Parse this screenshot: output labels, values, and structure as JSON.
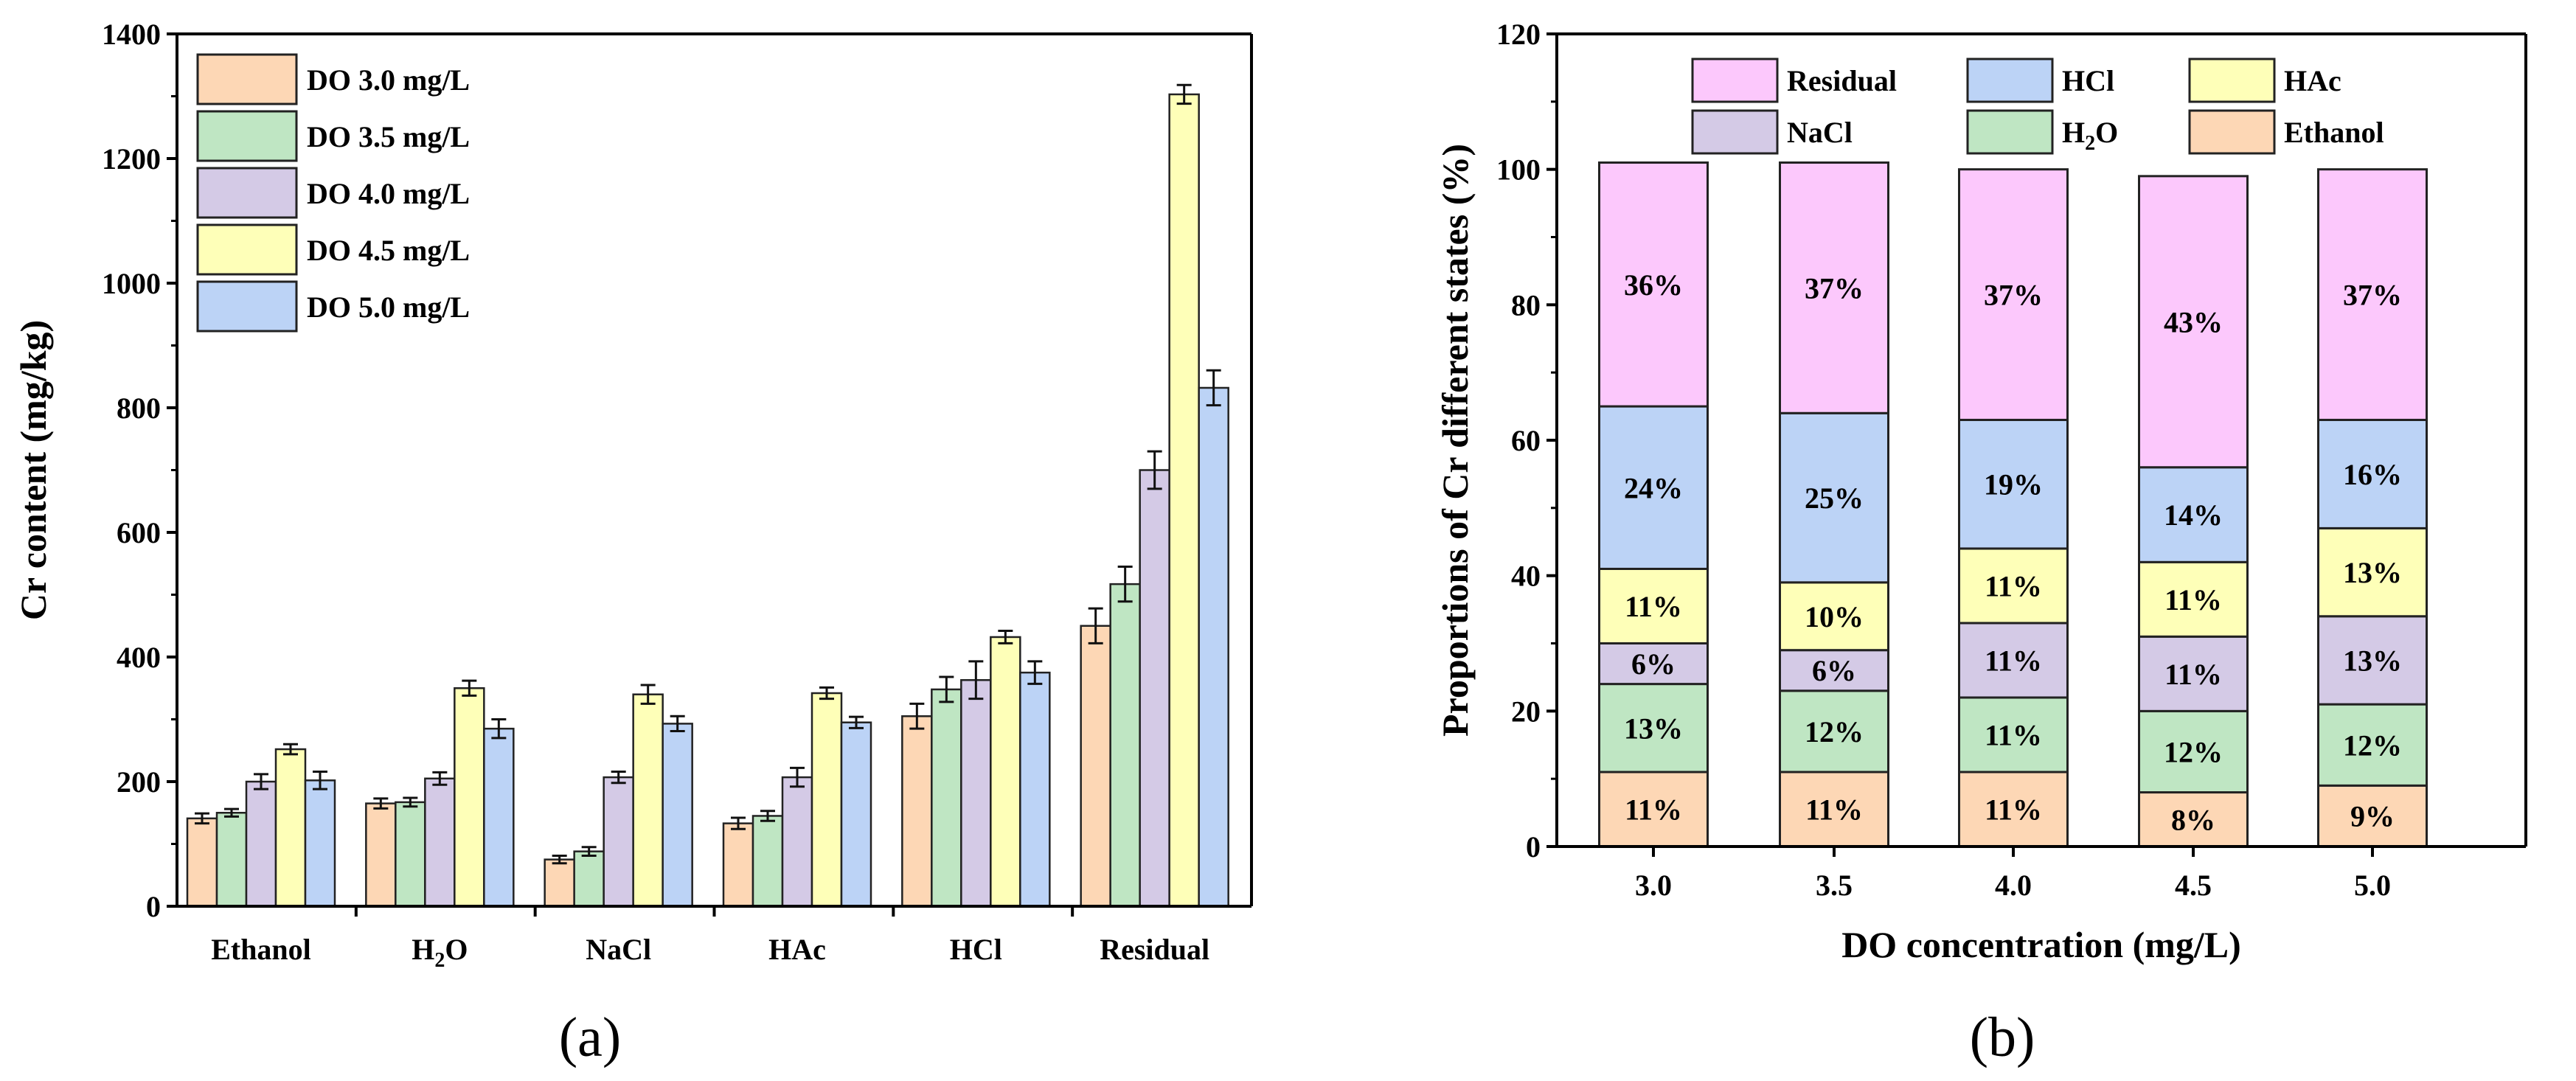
{
  "chart_data": [
    {
      "type": "bar",
      "panel_label": "(a)",
      "categories": [
        "Ethanol",
        "H2O",
        "NaCl",
        "HAc",
        "HCl",
        "Residual"
      ],
      "category_labels": [
        {
          "main": "Ethanol"
        },
        {
          "main": "H",
          "sub": "2",
          "rest": "O"
        },
        {
          "main": "NaCl"
        },
        {
          "main": "HAc"
        },
        {
          "main": "HCl"
        },
        {
          "main": "Residual"
        }
      ],
      "series": [
        {
          "name": "DO 3.0 mg/L",
          "color": "#fdd7b5",
          "values": [
            141,
            165,
            75,
            133,
            305,
            450
          ],
          "errors": [
            8,
            8,
            6,
            9,
            20,
            28
          ]
        },
        {
          "name": "DO 3.5 mg/L",
          "color": "#bfe6c3",
          "values": [
            150,
            167,
            88,
            145,
            348,
            517
          ],
          "errors": [
            6,
            7,
            7,
            8,
            20,
            28
          ]
        },
        {
          "name": "DO 4.0 mg/L",
          "color": "#d4cae6",
          "values": [
            200,
            205,
            207,
            207,
            363,
            700
          ],
          "errors": [
            12,
            10,
            9,
            15,
            30,
            30
          ]
        },
        {
          "name": "DO 4.5 mg/L",
          "color": "#feffb8",
          "values": [
            252,
            350,
            340,
            342,
            432,
            1303
          ],
          "errors": [
            8,
            12,
            15,
            9,
            10,
            15
          ]
        },
        {
          "name": "DO 5.0 mg/L",
          "color": "#bcd3f6",
          "values": [
            202,
            285,
            293,
            295,
            375,
            832
          ],
          "errors": [
            14,
            15,
            12,
            9,
            18,
            28
          ]
        }
      ],
      "ylabel": "Cr content (mg/kg)",
      "ylim": [
        0,
        1400
      ],
      "yticks": [
        "0",
        "200",
        "400",
        "600",
        "800",
        "1000",
        "1200",
        "1400"
      ],
      "legend_position": "top-left"
    },
    {
      "type": "bar",
      "stacked": true,
      "panel_label": "(b)",
      "categories": [
        "3.0",
        "3.5",
        "4.0",
        "4.5",
        "5.0"
      ],
      "xlabel": "DO concentration (mg/L)",
      "ylabel": "Proportions of Cr different states (%)",
      "ylim": [
        0,
        120
      ],
      "yticks": [
        "0",
        "20",
        "40",
        "60",
        "80",
        "100",
        "120"
      ],
      "series": [
        {
          "name": "Ethanol",
          "color": "#fdd7b5",
          "values": [
            11,
            11,
            11,
            8,
            9
          ],
          "labels": [
            "11%",
            "11%",
            "11%",
            "8%",
            "9%"
          ]
        },
        {
          "name": "H2O",
          "legend": {
            "main": "H",
            "sub": "2",
            "rest": "O"
          },
          "color": "#bfe6c3",
          "values": [
            13,
            12,
            11,
            12,
            12
          ],
          "labels": [
            "13%",
            "12%",
            "11%",
            "12%",
            "12%"
          ]
        },
        {
          "name": "NaCl",
          "color": "#d4cae6",
          "values": [
            6,
            6,
            11,
            11,
            13
          ],
          "labels": [
            "6%",
            "6%",
            "11%",
            "11%",
            "13%"
          ]
        },
        {
          "name": "HAc",
          "color": "#feffb8",
          "values": [
            11,
            10,
            11,
            11,
            13
          ],
          "labels": [
            "11%",
            "10%",
            "11%",
            "11%",
            "13%"
          ]
        },
        {
          "name": "HCl",
          "color": "#bcd3f6",
          "values": [
            24,
            25,
            19,
            14,
            16
          ],
          "labels": [
            "24%",
            "25%",
            "19%",
            "14%",
            "16%"
          ]
        },
        {
          "name": "Residual",
          "color": "#fcc8fc",
          "values": [
            36,
            37,
            37,
            43,
            37
          ],
          "labels": [
            "36%",
            "37%",
            "37%",
            "43%",
            "37%"
          ]
        }
      ],
      "legend_order": [
        "Residual",
        "HCl",
        "HAc",
        "NaCl",
        "H2O",
        "Ethanol"
      ],
      "legend_position": "top"
    }
  ]
}
